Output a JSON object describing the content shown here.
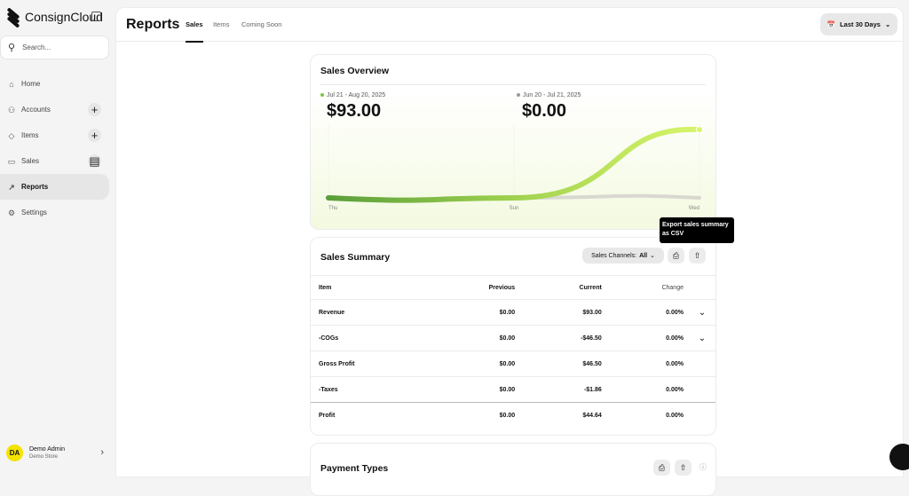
{
  "brand": "ConsignCloud",
  "search": {
    "placeholder": "Search..."
  },
  "sidebar": {
    "items": [
      {
        "label": "Home",
        "icon": "home-icon"
      },
      {
        "label": "Accounts",
        "icon": "users-icon",
        "action": "+"
      },
      {
        "label": "Items",
        "icon": "tag-icon",
        "action": "+"
      },
      {
        "label": "Sales",
        "icon": "register-icon",
        "action": "register"
      },
      {
        "label": "Reports",
        "icon": "chart-icon",
        "active": true
      },
      {
        "label": "Settings",
        "icon": "gear-icon"
      }
    ]
  },
  "user": {
    "initials": "DA",
    "name": "Demo Admin",
    "store": "Demo Store"
  },
  "header": {
    "title": "Reports",
    "tabs": [
      "Sales",
      "Items",
      "Coming Soon"
    ],
    "date_range": "Last 30 Days"
  },
  "overview": {
    "title": "Sales Overview",
    "current": {
      "period": "Jul 21 - Aug 20, 2025",
      "amount": "$93.00"
    },
    "previous": {
      "period": "Jun 20 - Jul 21, 2025",
      "amount": "$0.00"
    }
  },
  "chart_data": {
    "type": "line",
    "x": [
      "Thu",
      "Sun",
      "Wed"
    ],
    "series": [
      {
        "values": [
          0,
          0,
          93
        ],
        "color": "#7cc242"
      },
      {
        "values": [
          0,
          0,
          0
        ],
        "color": "#d8d8d0"
      }
    ],
    "ylim": [
      0,
      110
    ],
    "grid": "vertical"
  },
  "summary": {
    "title": "Sales Summary",
    "channels_label": "Sales Channels:",
    "channels_value": "All",
    "tooltip": "Export sales summary as CSV",
    "columns": [
      "Item",
      "Previous",
      "Current",
      "Change"
    ],
    "rows": [
      [
        "Revenue",
        "$0.00",
        "$93.00",
        "0.00%"
      ],
      [
        "-COGs",
        "$0.00",
        "-$46.50",
        "0.00%"
      ],
      [
        "Gross Profit",
        "$0.00",
        "$46.50",
        "0.00%"
      ],
      [
        "-Taxes",
        "$0.00",
        "-$1.86",
        "0.00%"
      ],
      [
        "Profit",
        "$0.00",
        "$44.64",
        "0.00%"
      ]
    ]
  },
  "payment": {
    "title": "Payment Types"
  },
  "colors": {
    "accent": "#7cc242",
    "active_nav": "#e6e6e6",
    "avatar": "#f4e300"
  }
}
